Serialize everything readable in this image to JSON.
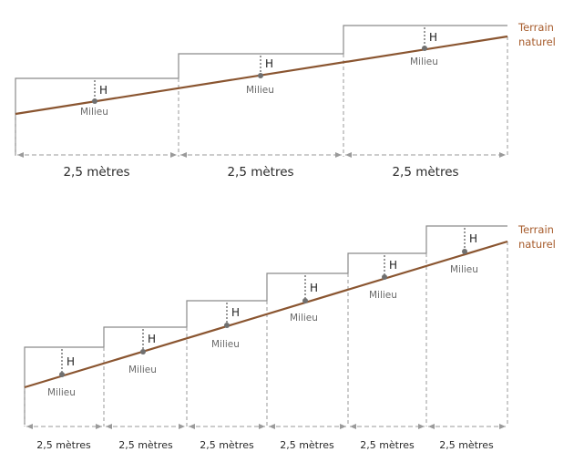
{
  "ground_label_line1": "Terrain",
  "ground_label_line2": "naturel",
  "midpoint_label": "Milieu",
  "height_label": "H",
  "spacing_label": "2,5 mètres",
  "colors": {
    "ground": "#8a5530",
    "steps": "#8a8a8a",
    "dims": "#9a9a9a",
    "text_accent": "#a65a2a"
  },
  "diagram_top": {
    "segments": 3
  },
  "diagram_bottom": {
    "segments": 6
  }
}
